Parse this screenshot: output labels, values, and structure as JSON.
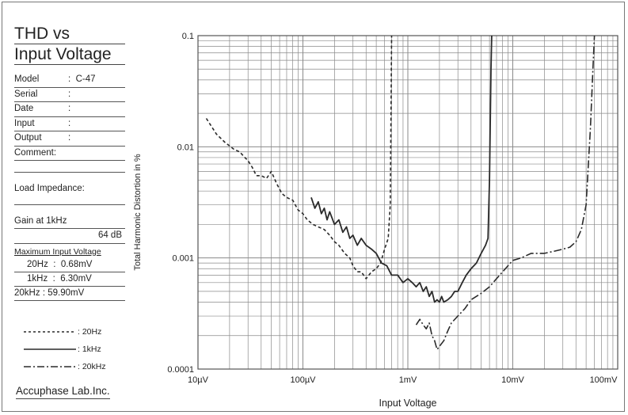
{
  "info": {
    "title_lines": [
      "THD vs",
      "Input Voltage"
    ],
    "fields": [
      {
        "label": "Model",
        "sep": ":",
        "value": "C-47"
      },
      {
        "label": "Serial",
        "sep": ":",
        "value": ""
      },
      {
        "label": "Date",
        "sep": ":",
        "value": ""
      },
      {
        "label": "Input",
        "sep": ":",
        "value": ""
      },
      {
        "label": "Output",
        "sep": ":",
        "value": ""
      },
      {
        "label": "Comment:",
        "sep": "",
        "value": ""
      }
    ],
    "load_impedance_label": "Load Impedance:",
    "gain_label": "Gain at 1kHz",
    "gain_value": "64 dB",
    "max_input_label": "Maximum Input Voltage",
    "max_input": [
      {
        "freq": "20Hz",
        "sep": ":",
        "value": "0.68mV"
      },
      {
        "freq": "1kHz",
        "sep": ":",
        "value": "6.30mV"
      },
      {
        "freq": "20kHz",
        "sep": ":",
        "value": "59.90mV"
      }
    ]
  },
  "legend": [
    {
      "label": ": 20Hz",
      "style": "dashed"
    },
    {
      "label": ": 1kHz",
      "style": "solid"
    },
    {
      "label": ": 20kHz",
      "style": "dashdot"
    }
  ],
  "brand": "Accuphase Lab.Inc.",
  "chart_data": {
    "type": "line",
    "title": "",
    "xlabel": "Input Voltage",
    "ylabel": "Total Harmonic Distortion in %",
    "x_scale": "log",
    "y_scale": "log",
    "xlim_volts": [
      1e-05,
      0.1
    ],
    "ylim_percent": [
      0.0001,
      0.1
    ],
    "x_ticks": [
      {
        "value": 1e-05,
        "label": "10µV"
      },
      {
        "value": 0.0001,
        "label": "100µV"
      },
      {
        "value": 0.001,
        "label": "1mV"
      },
      {
        "value": 0.01,
        "label": "10mV"
      },
      {
        "value": 0.1,
        "label": "100mV"
      }
    ],
    "y_ticks": [
      {
        "value": 0.1,
        "label": "0.1"
      },
      {
        "value": 0.01,
        "label": "0.01"
      },
      {
        "value": 0.001,
        "label": "0.001"
      },
      {
        "value": 0.0001,
        "label": "0.0001"
      }
    ],
    "grid": true,
    "colors": {
      "curve": "#2a2a2a",
      "grid": "#8a8a8a"
    },
    "series": [
      {
        "name": "20Hz",
        "style": "dashed",
        "x_volts": [
          1.2e-05,
          1.5e-05,
          1.8e-05,
          2.2e-05,
          2.5e-05,
          2.8e-05,
          3e-05,
          3.3e-05,
          3.6e-05,
          4e-05,
          4.5e-05,
          5e-05,
          5.6e-05,
          6.3e-05,
          7e-05,
          8e-05,
          9e-05,
          0.0001,
          0.00011,
          0.000125,
          0.00014,
          0.00016,
          0.00018,
          0.0002,
          0.00022,
          0.00025,
          0.00028,
          0.0003,
          0.00033,
          0.00036,
          0.0004,
          0.00045,
          0.0005,
          0.00055,
          0.0006,
          0.00065,
          0.00068,
          0.0007
        ],
        "thd_percent": [
          0.018,
          0.013,
          0.011,
          0.0095,
          0.009,
          0.008,
          0.0075,
          0.0065,
          0.0055,
          0.0055,
          0.0052,
          0.006,
          0.0047,
          0.0038,
          0.0035,
          0.0033,
          0.0027,
          0.0025,
          0.0022,
          0.002,
          0.0019,
          0.0018,
          0.0016,
          0.0014,
          0.0013,
          0.0011,
          0.001,
          0.00085,
          0.00075,
          0.00075,
          0.00065,
          0.00075,
          0.0008,
          0.0009,
          0.0012,
          0.0015,
          0.003,
          0.1
        ]
      },
      {
        "name": "1kHz",
        "style": "solid",
        "x_volts": [
          0.00012,
          0.00013,
          0.00014,
          0.00015,
          0.00016,
          0.00017,
          0.00018,
          0.0002,
          0.00022,
          0.00024,
          0.00026,
          0.00028,
          0.0003,
          0.00033,
          0.00036,
          0.0004,
          0.00045,
          0.0005,
          0.00056,
          0.00063,
          0.0007,
          0.0008,
          0.0009,
          0.001,
          0.0011,
          0.0012,
          0.0013,
          0.0014,
          0.0015,
          0.0016,
          0.0017,
          0.0018,
          0.0019,
          0.002,
          0.0021,
          0.0022,
          0.0024,
          0.0026,
          0.0028,
          0.003,
          0.0033,
          0.0036,
          0.004,
          0.0045,
          0.005,
          0.0055,
          0.0058,
          0.006,
          0.0062,
          0.0063
        ],
        "thd_percent": [
          0.0035,
          0.0028,
          0.0032,
          0.0025,
          0.0028,
          0.0022,
          0.0026,
          0.002,
          0.0022,
          0.0017,
          0.0019,
          0.0015,
          0.0016,
          0.0013,
          0.0015,
          0.0013,
          0.0012,
          0.0011,
          0.0009,
          0.00085,
          0.0007,
          0.0007,
          0.0006,
          0.00065,
          0.0006,
          0.00055,
          0.0006,
          0.0005,
          0.00055,
          0.00045,
          0.0005,
          0.0004,
          0.00042,
          0.0004,
          0.00045,
          0.0004,
          0.00042,
          0.00045,
          0.0005,
          0.0005,
          0.0006,
          0.0007,
          0.0008,
          0.0009,
          0.0011,
          0.0013,
          0.0015,
          0.005,
          0.05,
          0.1
        ]
      },
      {
        "name": "20kHz",
        "style": "dashdot",
        "x_volts": [
          0.0012,
          0.0013,
          0.0014,
          0.0015,
          0.0016,
          0.0017,
          0.0018,
          0.0019,
          0.002,
          0.0022,
          0.0024,
          0.0026,
          0.003,
          0.0035,
          0.004,
          0.005,
          0.006,
          0.007,
          0.008,
          0.009,
          0.01,
          0.012,
          0.015,
          0.02,
          0.025,
          0.03,
          0.035,
          0.04,
          0.045,
          0.05,
          0.055,
          0.058,
          0.06
        ],
        "thd_percent": [
          0.00025,
          0.00028,
          0.00025,
          0.00023,
          0.00026,
          0.0002,
          0.00018,
          0.00015,
          0.00016,
          0.00018,
          0.00022,
          0.00026,
          0.0003,
          0.00035,
          0.00042,
          0.00048,
          0.00055,
          0.00065,
          0.00075,
          0.00085,
          0.00095,
          0.001,
          0.0011,
          0.0011,
          0.00115,
          0.0012,
          0.00125,
          0.0014,
          0.0018,
          0.003,
          0.015,
          0.05,
          0.1
        ]
      }
    ]
  }
}
